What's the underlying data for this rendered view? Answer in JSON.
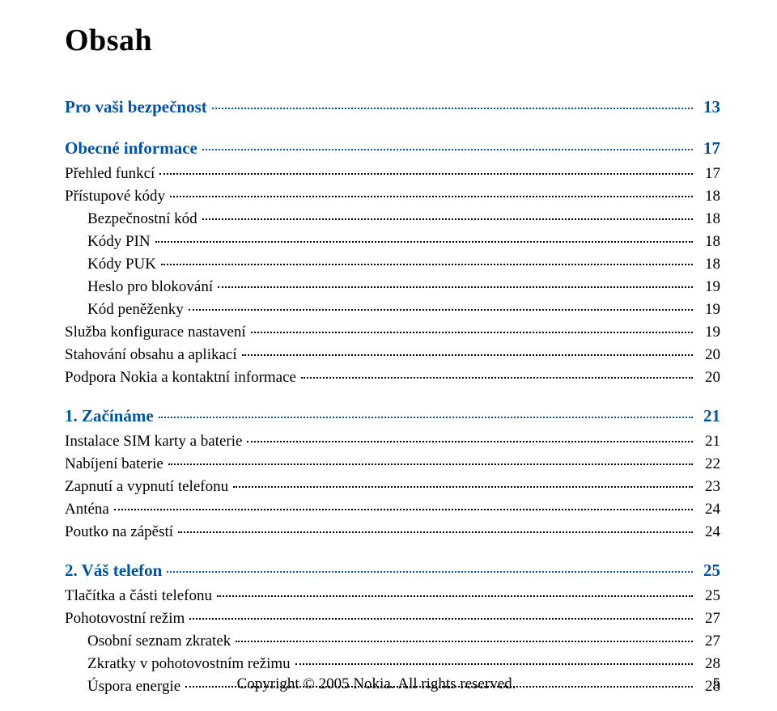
{
  "title": "Obsah",
  "colors": {
    "blue": "#00539f",
    "black": "#000000",
    "background": "#ffffff",
    "dot": "currentColor"
  },
  "typography": {
    "title_fontsize": 38,
    "lvl0_fontsize": 21,
    "body_fontsize": 19,
    "footer_fontsize": 19,
    "font_family": "Georgia, Times New Roman, serif"
  },
  "toc": [
    {
      "level": 0,
      "color": "blue",
      "label": "Pro vaši bezpečnost",
      "page": "13"
    },
    {
      "level": 0,
      "color": "blue",
      "label": "Obecné informace",
      "page": "17"
    },
    {
      "level": 1,
      "color": "black",
      "label": "Přehled funkcí",
      "page": "17"
    },
    {
      "level": 1,
      "color": "black",
      "label": "Přístupové kódy",
      "page": "18"
    },
    {
      "level": 2,
      "color": "black",
      "label": "Bezpečnostní kód",
      "page": "18"
    },
    {
      "level": 2,
      "color": "black",
      "label": "Kódy PIN",
      "page": "18"
    },
    {
      "level": 2,
      "color": "black",
      "label": "Kódy PUK",
      "page": "18"
    },
    {
      "level": 2,
      "color": "black",
      "label": "Heslo pro blokování",
      "page": "19"
    },
    {
      "level": 2,
      "color": "black",
      "label": "Kód peněženky",
      "page": "19"
    },
    {
      "level": 1,
      "color": "black",
      "label": "Služba konfigurace nastavení",
      "page": "19"
    },
    {
      "level": 1,
      "color": "black",
      "label": "Stahování obsahu a aplikací",
      "page": "20"
    },
    {
      "level": 1,
      "color": "black",
      "label": "Podpora Nokia a kontaktní informace",
      "page": "20"
    },
    {
      "level": 0,
      "color": "blue",
      "label": "1. Začínáme",
      "page": "21"
    },
    {
      "level": 1,
      "color": "black",
      "label": "Instalace SIM karty a baterie",
      "page": "21"
    },
    {
      "level": 1,
      "color": "black",
      "label": "Nabíjení baterie",
      "page": "22"
    },
    {
      "level": 1,
      "color": "black",
      "label": "Zapnutí a vypnutí telefonu",
      "page": "23"
    },
    {
      "level": 1,
      "color": "black",
      "label": "Anténa",
      "page": "24"
    },
    {
      "level": 1,
      "color": "black",
      "label": "Poutko na zápěstí",
      "page": "24"
    },
    {
      "level": 0,
      "color": "blue",
      "label": "2. Váš telefon",
      "page": "25"
    },
    {
      "level": 1,
      "color": "black",
      "label": "Tlačítka a části telefonu",
      "page": "25"
    },
    {
      "level": 1,
      "color": "black",
      "label": "Pohotovostní režim",
      "page": "27"
    },
    {
      "level": 2,
      "color": "black",
      "label": "Osobní seznam zkratek",
      "page": "27"
    },
    {
      "level": 2,
      "color": "black",
      "label": "Zkratky v pohotovostním režimu",
      "page": "28"
    },
    {
      "level": 2,
      "color": "black",
      "label": "Úspora energie",
      "page": "28"
    }
  ],
  "footer": {
    "copyright": "Copyright © 2005 Nokia. All rights reserved.",
    "page_number": "5"
  }
}
